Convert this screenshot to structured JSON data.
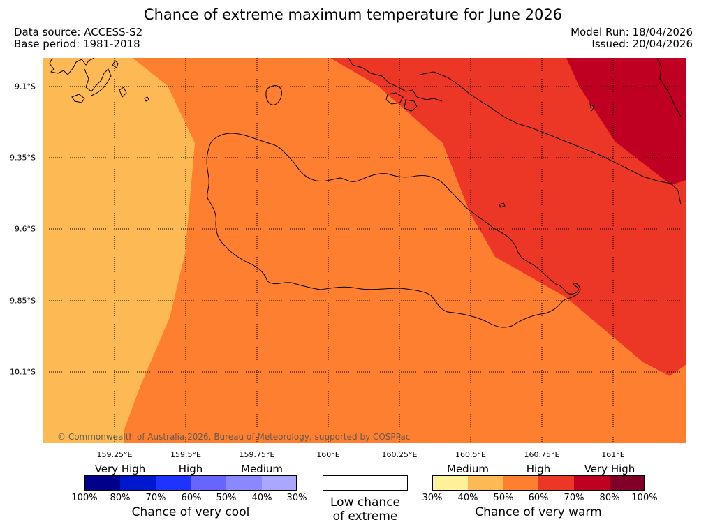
{
  "header": {
    "title": "Chance of extreme maximum temperature for June 2026",
    "data_source": "Data source: ACCESS-S2",
    "base_period": "Base period: 1981-2018",
    "model_run": "Model Run: 18/04/2026",
    "issued": "Issued: 20/04/2026"
  },
  "map": {
    "lat_labels": [
      "9.1°S",
      "9.35°S",
      "9.6°S",
      "9.85°S",
      "10.1°S"
    ],
    "lon_labels": [
      "159.25°E",
      "159.5°E",
      "159.75°E",
      "160°E",
      "160.25°E",
      "160.5°E",
      "160.75°E",
      "161°E"
    ],
    "copyright": "© Commonwealth of Australia 2026, Bureau of Meteorology, supported by COSPPac",
    "zone_colors": {
      "medium_40_50": "#fdb954",
      "high_50_60": "#fe7f2f",
      "high_60_70": "#ec3626",
      "very_high_70_80": "#c00022"
    }
  },
  "legend": {
    "cool": {
      "headings": [
        "Very High",
        "High",
        "Medium"
      ],
      "colors": [
        "#00008b",
        "#0018cd",
        "#1e34fe",
        "#6865fe",
        "#8a88fe",
        "#aaa8fe"
      ],
      "ticks": [
        "100%",
        "80%",
        "70%",
        "60%",
        "50%",
        "40%",
        "30%"
      ],
      "title": "Chance of very cool"
    },
    "low": {
      "line1": "Low chance",
      "line2": "of extreme"
    },
    "warm": {
      "headings": [
        "Medium",
        "High",
        "Very High"
      ],
      "colors": [
        "#fff09a",
        "#fdb954",
        "#fe7f2f",
        "#ec3626",
        "#c00022",
        "#800026"
      ],
      "ticks": [
        "30%",
        "40%",
        "50%",
        "60%",
        "70%",
        "80%",
        "100%"
      ],
      "title": "Chance of very warm"
    }
  }
}
